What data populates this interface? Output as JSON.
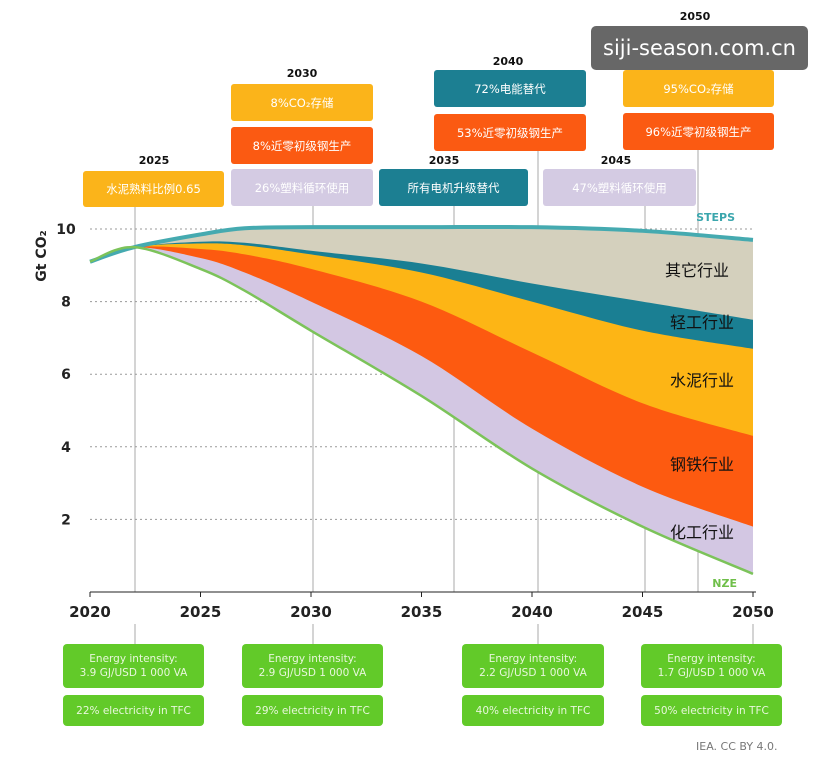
{
  "chart_data": {
    "type": "area",
    "ylabel": "Gt CO₂",
    "xlim": [
      2020,
      2050
    ],
    "ylim": [
      0,
      10.5
    ],
    "x_ticks": [
      "2020",
      "2025",
      "2030",
      "2035",
      "2040",
      "2045",
      "2050"
    ],
    "y_ticks": [
      "2",
      "4",
      "6",
      "8",
      "10"
    ],
    "x": [
      2020,
      2022,
      2025,
      2027,
      2030,
      2035,
      2040,
      2045,
      2050
    ],
    "steps": [
      9.1,
      9.5,
      9.85,
      10.02,
      10.05,
      10.05,
      10.05,
      9.95,
      9.7
    ],
    "nze": [
      9.1,
      9.5,
      8.9,
      8.3,
      7.2,
      5.4,
      3.4,
      1.8,
      0.5
    ],
    "series": [
      {
        "name": "化工行业",
        "color": "#d3c7e3",
        "top": [
          9.1,
          9.5,
          9.2,
          8.8,
          8.0,
          6.5,
          4.5,
          2.9,
          1.8
        ]
      },
      {
        "name": "钢铁行业",
        "color": "#fd5a10",
        "top": [
          9.1,
          9.5,
          9.45,
          9.3,
          8.9,
          8.0,
          6.6,
          5.2,
          4.3
        ]
      },
      {
        "name": "水泥行业",
        "color": "#fdb515",
        "top": [
          9.1,
          9.5,
          9.6,
          9.55,
          9.3,
          8.8,
          8.0,
          7.2,
          6.7
        ]
      },
      {
        "name": "轻工行业",
        "color": "#1a7f93",
        "top": [
          9.1,
          9.5,
          9.65,
          9.62,
          9.4,
          9.05,
          8.5,
          8.0,
          7.5
        ]
      },
      {
        "name": "其它行业",
        "color": "#d4d0bd",
        "top": [
          9.1,
          9.5,
          9.85,
          10.02,
          10.05,
          10.05,
          10.05,
          9.95,
          9.7
        ]
      }
    ],
    "steps_label": "STEPS",
    "nze_label": "NZE",
    "milestones": [
      {
        "year": "2025",
        "items": [
          {
            "text": "水泥熟料比例0.65",
            "style": "yellow"
          }
        ]
      },
      {
        "year": "2030",
        "items": [
          {
            "text": "8%CO₂存储",
            "style": "yellow"
          },
          {
            "text": "8%近零初级钢生产",
            "style": "orange"
          },
          {
            "text": "26%塑料循环使用",
            "style": "lav"
          }
        ]
      },
      {
        "year": "2035",
        "items": [
          {
            "text": "所有电机升级替代",
            "style": "teal"
          }
        ]
      },
      {
        "year": "2040",
        "items": [
          {
            "text": "72%电能替代",
            "style": "teal"
          },
          {
            "text": "53%近零初级钢生产",
            "style": "orange"
          }
        ]
      },
      {
        "year": "2045",
        "items": [
          {
            "text": "47%塑料循环使用",
            "style": "lav"
          }
        ]
      },
      {
        "year": "2050",
        "items": [
          {
            "text": "95%CO₂存储",
            "style": "yellow"
          },
          {
            "text": "96%近零初级钢生产",
            "style": "orange"
          }
        ]
      }
    ],
    "energy_boxes": [
      {
        "intensity": "Energy intensity:",
        "value": "3.9 GJ/USD 1 000 VA",
        "electricity": "22% electricity in TFC"
      },
      {
        "intensity": "Energy intensity:",
        "value": "2.9 GJ/USD 1 000 VA",
        "electricity": "29% electricity in TFC"
      },
      {
        "intensity": "Energy intensity:",
        "value": "2.2 GJ/USD 1 000 VA",
        "electricity": "40% electricity in TFC"
      },
      {
        "intensity": "Energy intensity:",
        "value": "1.7 GJ/USD 1 000 VA",
        "electricity": "50% electricity in TFC"
      }
    ]
  },
  "watermark": "siji-season.com.cn",
  "credit": "IEA. CC BY 4.0.",
  "colors": {
    "green": "#62ca29",
    "steps_line": "#45aab0",
    "nze_line": "#7cc35a"
  }
}
